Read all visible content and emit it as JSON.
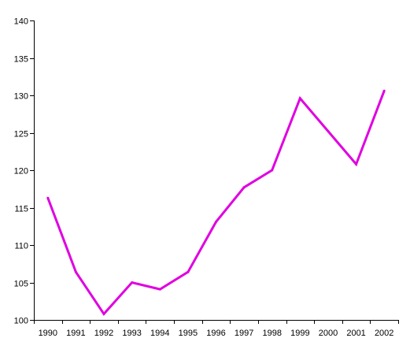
{
  "chart_data": {
    "type": "line",
    "title": "",
    "xlabel": "",
    "ylabel": "",
    "categories": [
      "1990",
      "1991",
      "1992",
      "1993",
      "1994",
      "1995",
      "1996",
      "1997",
      "1998",
      "1999",
      "2000",
      "2001",
      "2002"
    ],
    "series": [
      {
        "color": "#e000e0",
        "values": [
          116.3,
          106.4,
          100.8,
          105.0,
          104.1,
          106.4,
          113.1,
          117.7,
          120.0,
          129.6,
          125.2,
          120.8,
          130.6
        ]
      }
    ],
    "ylim": [
      100,
      140
    ],
    "yticks": [
      "100",
      "105",
      "110",
      "115",
      "120",
      "125",
      "130",
      "135",
      "140"
    ],
    "grid": false,
    "legend": "none"
  }
}
